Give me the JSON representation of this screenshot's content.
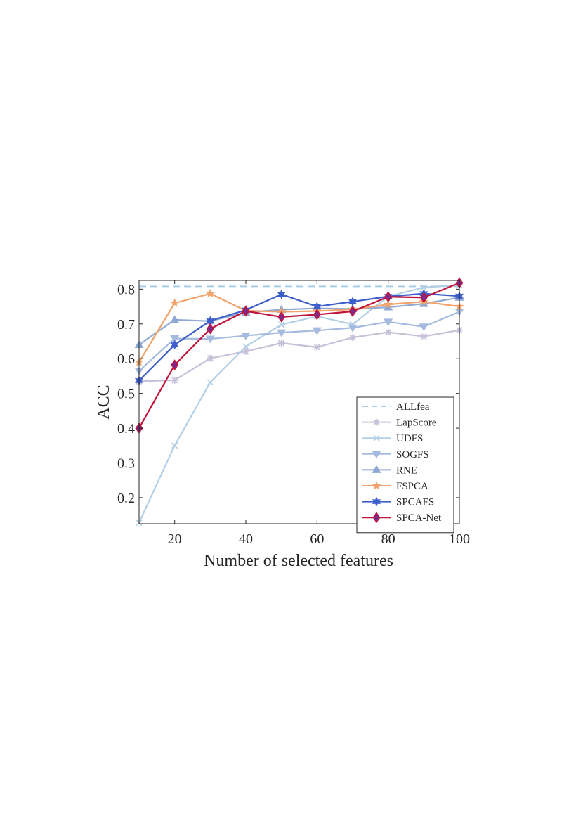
{
  "chart_data": {
    "type": "line",
    "xlabel": "Number of selected features",
    "ylabel": "ACC",
    "xlim": [
      10,
      100
    ],
    "ylim": [
      0.125,
      0.825
    ],
    "x_ticks": [
      20,
      40,
      60,
      80,
      100
    ],
    "y_ticks": [
      0.2,
      0.3,
      0.4,
      0.5,
      0.6,
      0.7,
      0.8
    ],
    "x_tick_labels": [
      "20",
      "40",
      "60",
      "80",
      "100"
    ],
    "y_tick_labels": [
      "0.2",
      "0.3",
      "0.4",
      "0.5",
      "0.6",
      "0.7",
      "0.8"
    ],
    "grid": false,
    "legend_position": "bottom-right",
    "x": [
      10,
      20,
      30,
      40,
      50,
      60,
      70,
      80,
      90,
      100
    ],
    "series": [
      {
        "name": "ALLfea",
        "color": "#a9cde8",
        "marker": "none",
        "dashed": true,
        "values": [
          0.808,
          0.808,
          0.808,
          0.808,
          0.808,
          0.808,
          0.808,
          0.808,
          0.808,
          0.808
        ]
      },
      {
        "name": "LapScore",
        "color": "#c7c0d9",
        "marker": "asterisk",
        "dashed": false,
        "values": [
          0.535,
          0.538,
          0.601,
          0.621,
          0.645,
          0.633,
          0.661,
          0.676,
          0.664,
          0.682
        ]
      },
      {
        "name": "UDFS",
        "color": "#b3cfe6",
        "marker": "x",
        "dashed": false,
        "values": [
          0.128,
          0.35,
          0.532,
          0.635,
          0.698,
          0.722,
          0.699,
          0.779,
          0.805,
          0.812
        ]
      },
      {
        "name": "SOGFS",
        "color": "#a5badf",
        "marker": "triangle-down",
        "dashed": false,
        "values": [
          0.565,
          0.658,
          0.657,
          0.666,
          0.675,
          0.681,
          0.689,
          0.706,
          0.692,
          0.735
        ]
      },
      {
        "name": "RNE",
        "color": "#8fa9d4",
        "marker": "triangle-up",
        "dashed": false,
        "values": [
          0.64,
          0.712,
          0.708,
          0.733,
          0.741,
          0.745,
          0.743,
          0.748,
          0.758,
          0.776
        ]
      },
      {
        "name": "FSPCA",
        "color": "#f2a36b",
        "marker": "star",
        "dashed": false,
        "values": [
          0.59,
          0.76,
          0.787,
          0.738,
          0.735,
          0.737,
          0.742,
          0.756,
          0.764,
          0.75
        ]
      },
      {
        "name": "SPCAFS",
        "color": "#3d5fcc",
        "marker": "hexagram",
        "dashed": false,
        "values": [
          0.537,
          0.64,
          0.709,
          0.74,
          0.785,
          0.75,
          0.764,
          0.779,
          0.787,
          0.78
        ]
      },
      {
        "name": "SPCA-Net",
        "color": "#c0143c",
        "marker": "diamond",
        "dashed": false,
        "values": [
          0.4,
          0.582,
          0.686,
          0.737,
          0.72,
          0.727,
          0.736,
          0.778,
          0.776,
          0.818
        ]
      }
    ]
  }
}
